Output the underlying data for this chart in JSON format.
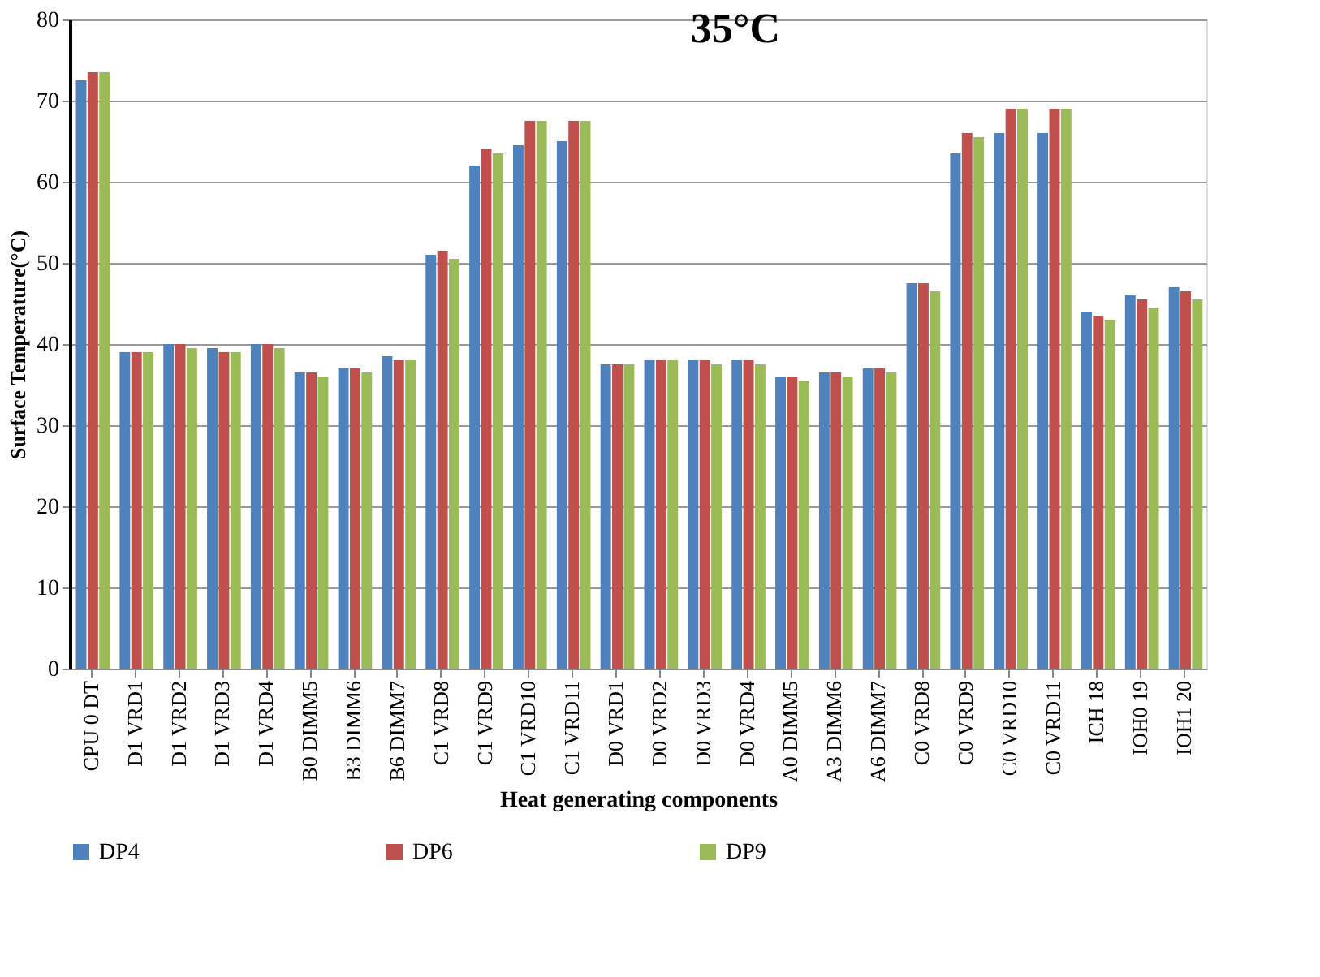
{
  "chart_data": {
    "type": "bar",
    "title": "35°C",
    "xlabel": "Heat generating components",
    "ylabel": "Surface Temperature(°C)",
    "categories": [
      "CPU 0 DT",
      "D1 VRD1",
      "D1 VRD2",
      "D1 VRD3",
      "D1 VRD4",
      "B0 DIMM5",
      "B3 DIMM6",
      "B6 DIMM7",
      "C1 VRD8",
      "C1 VRD9",
      "C1 VRD10",
      "C1 VRD11",
      "D0 VRD1",
      "D0 VRD2",
      "D0 VRD3",
      "D0 VRD4",
      "A0 DIMM5",
      "A3 DIMM6",
      "A6 DIMM7",
      "C0 VRD8",
      "C0 VRD9",
      "C0 VRD10",
      "C0 VRD11",
      "ICH 18",
      "IOH0 19",
      "IOH1 20"
    ],
    "series": [
      {
        "name": "DP4",
        "color": "#4f81bd",
        "values": [
          72.5,
          39,
          40,
          39.5,
          40,
          36.5,
          37,
          38.5,
          51,
          62,
          64.5,
          65,
          37.5,
          38,
          38,
          38,
          36,
          36.5,
          37,
          47.5,
          63.5,
          66,
          66,
          44,
          46,
          47
        ]
      },
      {
        "name": "DP6",
        "color": "#c0504d",
        "values": [
          73.5,
          39,
          40,
          39,
          40,
          36.5,
          37,
          38,
          51.5,
          64,
          67.5,
          67.5,
          37.5,
          38,
          38,
          38,
          36,
          36.5,
          37,
          47.5,
          66,
          69,
          69,
          43.5,
          45.5,
          46.5
        ]
      },
      {
        "name": "DP9",
        "color": "#9bbb59",
        "values": [
          73.5,
          39,
          39.5,
          39,
          39.5,
          36,
          36.5,
          38,
          50.5,
          63.5,
          67.5,
          67.5,
          37.5,
          38,
          37.5,
          37.5,
          35.5,
          36,
          36.5,
          46.5,
          65.5,
          69,
          69,
          43,
          44.5,
          45.5
        ]
      }
    ],
    "ylim": [
      0,
      80
    ],
    "yticks": [
      0,
      10,
      20,
      30,
      40,
      50,
      60,
      70,
      80
    ],
    "grid": "y",
    "legend": "bottom"
  }
}
